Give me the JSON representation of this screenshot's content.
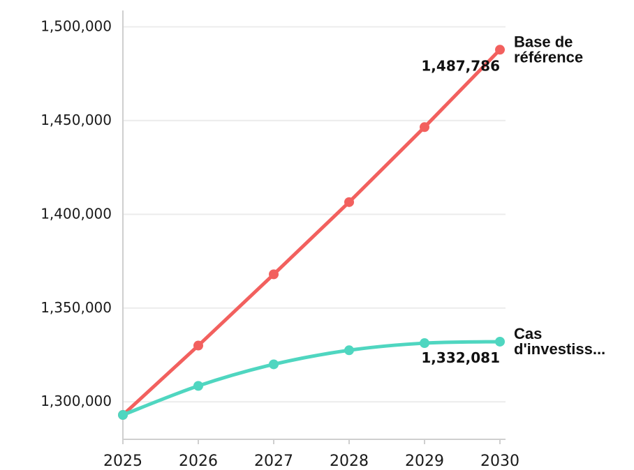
{
  "chart_data": {
    "type": "line",
    "x": [
      "2025",
      "2026",
      "2027",
      "2028",
      "2029",
      "2030"
    ],
    "ylim": [
      1280000,
      1505000
    ],
    "yticks": [
      1300000,
      1350000,
      1400000,
      1450000,
      1500000
    ],
    "ytick_labels": [
      "1,300,000",
      "1,350,000",
      "1,400,000",
      "1,450,000",
      "1,500,000"
    ],
    "grid": true,
    "series": [
      {
        "name_lines": [
          "Base de",
          "référence"
        ],
        "color": "#f2605e",
        "values": [
          1293000,
          1330000,
          1368000,
          1406500,
          1446500,
          1487786
        ],
        "end_label": "1,487,786",
        "smooth": false
      },
      {
        "name_lines": [
          "Cas",
          "d'investiss..."
        ],
        "color": "#4fd6c0",
        "values": [
          1293000,
          1308500,
          1320000,
          1327500,
          1331300,
          1332081
        ],
        "end_label": "1,332,081",
        "smooth": true
      }
    ]
  }
}
